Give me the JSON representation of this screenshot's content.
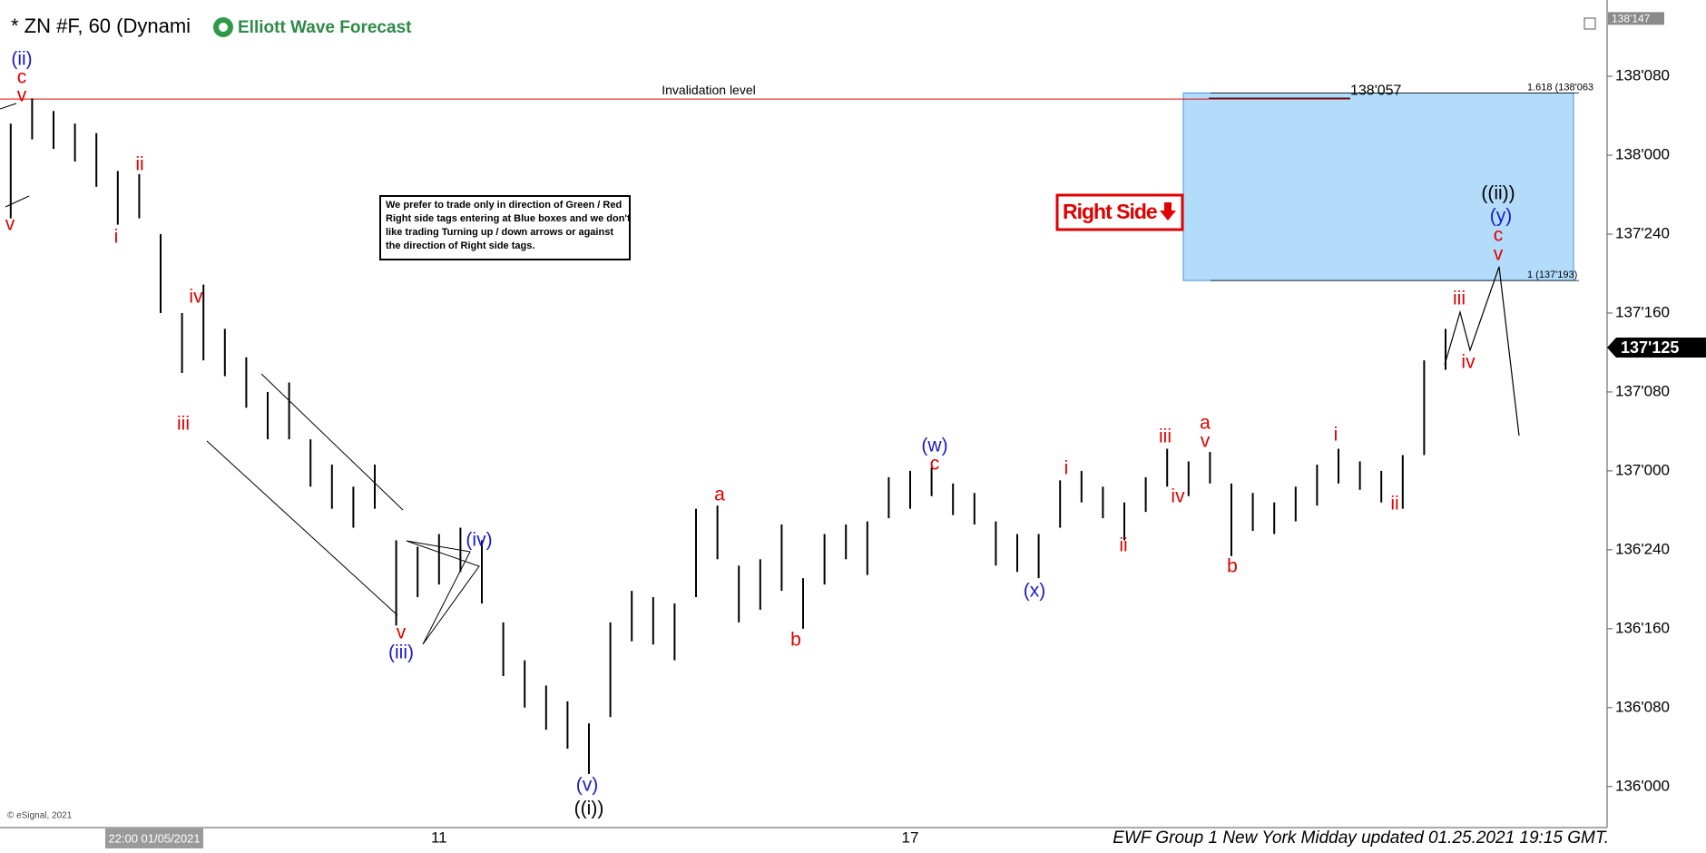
{
  "chart_data": {
    "type": "ohlc",
    "title": "* ZN #F, 60 (Dynami",
    "logo_text": "Elliott Wave Forecast",
    "color": "#000000",
    "categories": [
      null,
      null,
      null,
      null,
      null,
      null,
      null,
      null,
      null,
      null,
      null,
      null,
      null,
      null,
      null,
      null,
      null,
      null,
      null,
      null,
      "11",
      null,
      null,
      null,
      null,
      null,
      null,
      null,
      null,
      null,
      null,
      null,
      null,
      null,
      null,
      null,
      null,
      null,
      null,
      null,
      null,
      null,
      "17",
      null,
      null,
      null,
      null,
      null,
      null,
      null,
      null,
      null,
      null,
      null,
      null,
      null,
      null,
      null,
      null,
      null,
      null,
      null,
      null,
      null,
      null,
      null,
      null,
      null
    ],
    "high": [
      138.1,
      138.18,
      138.14,
      138.1,
      138.07,
      137.95,
      137.94,
      137.75,
      137.5,
      137.59,
      137.45,
      137.36,
      137.25,
      137.28,
      137.1,
      137.02,
      136.95,
      137.02,
      136.78,
      136.76,
      136.8,
      136.82,
      136.78,
      136.52,
      136.4,
      136.32,
      136.27,
      136.2,
      136.52,
      136.62,
      136.6,
      136.58,
      136.88,
      136.89,
      136.7,
      136.72,
      136.83,
      136.66,
      136.8,
      136.83,
      136.84,
      136.98,
      137.0,
      137.01,
      136.96,
      136.93,
      136.84,
      136.8,
      136.8,
      136.97,
      137.0,
      136.95,
      136.9,
      136.98,
      137.07,
      137.03,
      137.06,
      136.96,
      136.93,
      136.9,
      136.95,
      137.02,
      137.07,
      137.03,
      137.0,
      137.05,
      137.35,
      137.45
    ],
    "low": [
      137.8,
      138.05,
      138.02,
      137.98,
      137.9,
      137.78,
      137.8,
      137.5,
      137.31,
      137.35,
      137.3,
      137.2,
      137.1,
      137.1,
      136.95,
      136.88,
      136.82,
      136.88,
      136.51,
      136.6,
      136.64,
      136.68,
      136.58,
      136.35,
      136.25,
      136.18,
      136.12,
      136.04,
      136.22,
      136.46,
      136.45,
      136.4,
      136.6,
      136.72,
      136.52,
      136.56,
      136.62,
      136.5,
      136.64,
      136.72,
      136.67,
      136.85,
      136.88,
      136.92,
      136.86,
      136.83,
      136.7,
      136.68,
      136.66,
      136.82,
      136.9,
      136.85,
      136.78,
      136.87,
      136.95,
      136.92,
      136.96,
      136.73,
      136.81,
      136.8,
      136.84,
      136.89,
      136.96,
      136.94,
      136.9,
      136.88,
      137.05,
      137.32
    ],
    "ylim": [
      135.87,
      138.46
    ],
    "yticks": [
      {
        "value": 136,
        "label": "136'000"
      },
      {
        "value": 136.25,
        "label": "136'080"
      },
      {
        "value": 136.5,
        "label": "136'160"
      },
      {
        "value": 136.75,
        "label": "136'240"
      },
      {
        "value": 137,
        "label": "137'000"
      },
      {
        "value": 137.25,
        "label": "137'080"
      },
      {
        "value": 137.5,
        "label": "137'160"
      },
      {
        "value": 137.75,
        "label": "137'240"
      },
      {
        "value": 138,
        "label": "138'000"
      },
      {
        "value": 138.25,
        "label": "138'080"
      }
    ],
    "axis_top": {
      "value": 138.459,
      "label": "138'147"
    },
    "last_price": {
      "value": 137.3906,
      "label": "137'125"
    },
    "invalidation": {
      "text": "Invalidation level",
      "value": 138.178,
      "label": "138'057"
    },
    "fib_levels": [
      {
        "value": 138.197,
        "label": "1.618 (138'063"
      },
      {
        "value": 137.603,
        "label": "1 (137'193)"
      }
    ],
    "wave_labels": [
      "(ii)",
      "c",
      "v",
      "v",
      "i",
      "ii",
      "iii",
      "iv",
      "v",
      "(iii)",
      "(iv)",
      "(v)",
      "((i))",
      "a",
      "b",
      "(w)",
      "c",
      "(x)",
      "i",
      "ii",
      "iii",
      "iv",
      "a",
      "v",
      "b",
      "i",
      "ii",
      "iii",
      "iv",
      "((ii))",
      "(y)",
      "c",
      "v"
    ],
    "right_side": "Right Side",
    "note": [
      "We prefer to trade only in direction of Green / Red",
      "Right side tags entering at Blue boxes and we don't",
      "like trading Turning up / down arrows or against",
      "the direction of Right side tags."
    ],
    "cursor_time": "22:00 01/05/2021",
    "footer": "EWF Group 1 New York Midday updated 01.25.2021 19:15 GMT.",
    "copyright": "© eSignal, 2021"
  }
}
